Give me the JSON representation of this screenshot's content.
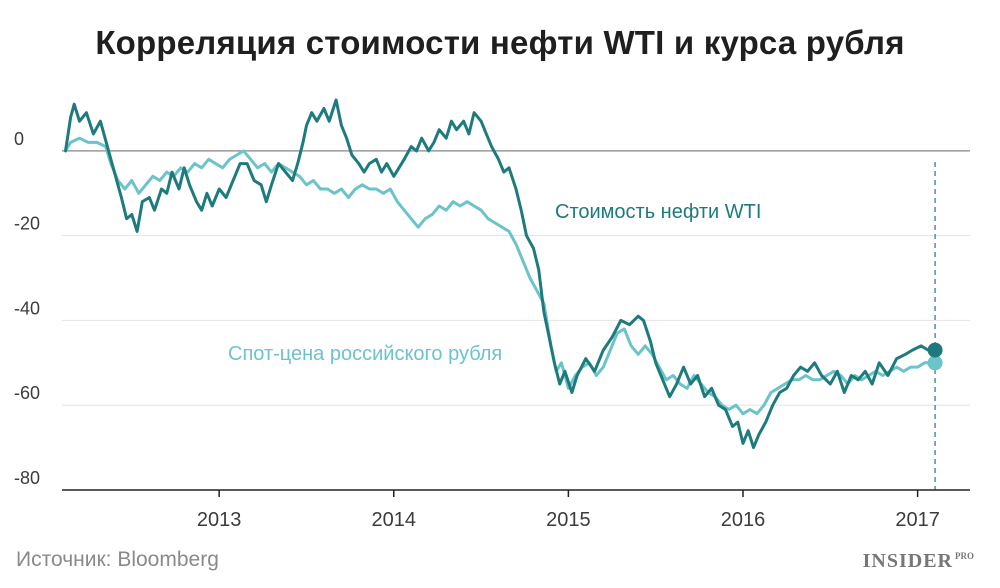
{
  "title": "Корреляция стоимости нефти WTI и курса рубля",
  "source": "Источник: Bloomberg",
  "brand": {
    "name": "INSIDER",
    "sup": "PRO"
  },
  "colors": {
    "oil": "#1e7b7d",
    "ruble": "#6cc3c9",
    "grid": "#e4e4e4",
    "zero": "#9a9a9a",
    "axis": "#222222"
  },
  "chart_data": {
    "type": "line",
    "title": "Корреляция стоимости нефти WTI и курса рубля",
    "xlabel": "",
    "ylabel": "",
    "ylim": [
      -80,
      12
    ],
    "xlim": [
      2012.1,
      2017.3
    ],
    "y_ticks": [
      "0",
      "-20",
      "-40",
      "-60",
      "-80"
    ],
    "y_tick_values": [
      0,
      -20,
      -40,
      -60,
      -80
    ],
    "x_ticks": [
      "2013",
      "2014",
      "2015",
      "2016",
      "2017"
    ],
    "x_tick_values": [
      2013,
      2014,
      2015,
      2016,
      2017
    ],
    "grid": true,
    "marker_x": 2017.1,
    "series": [
      {
        "name": "Стоимость нефти WTI",
        "points": [
          [
            2012.12,
            0
          ],
          [
            2012.15,
            8
          ],
          [
            2012.17,
            11
          ],
          [
            2012.2,
            7
          ],
          [
            2012.24,
            9
          ],
          [
            2012.28,
            4
          ],
          [
            2012.32,
            7
          ],
          [
            2012.36,
            1
          ],
          [
            2012.4,
            -5
          ],
          [
            2012.44,
            -11
          ],
          [
            2012.47,
            -16
          ],
          [
            2012.5,
            -15
          ],
          [
            2012.53,
            -19
          ],
          [
            2012.56,
            -12
          ],
          [
            2012.6,
            -11
          ],
          [
            2012.63,
            -14
          ],
          [
            2012.67,
            -9
          ],
          [
            2012.7,
            -10
          ],
          [
            2012.73,
            -5
          ],
          [
            2012.77,
            -9
          ],
          [
            2012.8,
            -4
          ],
          [
            2012.83,
            -8
          ],
          [
            2012.87,
            -12
          ],
          [
            2012.9,
            -14
          ],
          [
            2012.93,
            -10
          ],
          [
            2012.96,
            -13
          ],
          [
            2013.0,
            -9
          ],
          [
            2013.04,
            -11
          ],
          [
            2013.08,
            -7
          ],
          [
            2013.12,
            -3
          ],
          [
            2013.16,
            -3
          ],
          [
            2013.2,
            -7
          ],
          [
            2013.24,
            -8
          ],
          [
            2013.27,
            -12
          ],
          [
            2013.3,
            -8
          ],
          [
            2013.34,
            -3
          ],
          [
            2013.38,
            -5
          ],
          [
            2013.42,
            -7
          ],
          [
            2013.45,
            -3
          ],
          [
            2013.48,
            2
          ],
          [
            2013.5,
            6
          ],
          [
            2013.53,
            9
          ],
          [
            2013.56,
            7
          ],
          [
            2013.6,
            10
          ],
          [
            2013.63,
            7
          ],
          [
            2013.67,
            12
          ],
          [
            2013.7,
            6
          ],
          [
            2013.73,
            3
          ],
          [
            2013.76,
            -1
          ],
          [
            2013.8,
            -3
          ],
          [
            2013.83,
            -5
          ],
          [
            2013.86,
            -3
          ],
          [
            2013.9,
            -2
          ],
          [
            2013.93,
            -5
          ],
          [
            2013.96,
            -3
          ],
          [
            2014.0,
            -6
          ],
          [
            2014.03,
            -4
          ],
          [
            2014.06,
            -2
          ],
          [
            2014.1,
            1
          ],
          [
            2014.13,
            0
          ],
          [
            2014.16,
            3
          ],
          [
            2014.2,
            0
          ],
          [
            2014.23,
            2
          ],
          [
            2014.26,
            5
          ],
          [
            2014.3,
            3
          ],
          [
            2014.33,
            7
          ],
          [
            2014.36,
            5
          ],
          [
            2014.4,
            7
          ],
          [
            2014.43,
            4
          ],
          [
            2014.46,
            9
          ],
          [
            2014.5,
            7
          ],
          [
            2014.53,
            4
          ],
          [
            2014.56,
            1
          ],
          [
            2014.6,
            -2
          ],
          [
            2014.63,
            -5
          ],
          [
            2014.66,
            -4
          ],
          [
            2014.7,
            -9
          ],
          [
            2014.73,
            -14
          ],
          [
            2014.76,
            -20
          ],
          [
            2014.8,
            -23
          ],
          [
            2014.83,
            -28
          ],
          [
            2014.86,
            -38
          ],
          [
            2014.89,
            -44
          ],
          [
            2014.92,
            -50
          ],
          [
            2014.95,
            -55
          ],
          [
            2014.98,
            -52
          ],
          [
            2015.02,
            -57
          ],
          [
            2015.05,
            -53
          ],
          [
            2015.1,
            -49
          ],
          [
            2015.15,
            -52
          ],
          [
            2015.2,
            -47
          ],
          [
            2015.25,
            -44
          ],
          [
            2015.3,
            -40
          ],
          [
            2015.35,
            -41
          ],
          [
            2015.4,
            -39
          ],
          [
            2015.43,
            -40
          ],
          [
            2015.47,
            -45
          ],
          [
            2015.5,
            -50
          ],
          [
            2015.54,
            -54
          ],
          [
            2015.58,
            -58
          ],
          [
            2015.62,
            -55
          ],
          [
            2015.66,
            -51
          ],
          [
            2015.7,
            -55
          ],
          [
            2015.74,
            -53
          ],
          [
            2015.78,
            -58
          ],
          [
            2015.82,
            -56
          ],
          [
            2015.86,
            -60
          ],
          [
            2015.9,
            -61
          ],
          [
            2015.94,
            -65
          ],
          [
            2015.97,
            -64
          ],
          [
            2016.0,
            -69
          ],
          [
            2016.03,
            -66
          ],
          [
            2016.06,
            -70
          ],
          [
            2016.09,
            -67
          ],
          [
            2016.13,
            -64
          ],
          [
            2016.17,
            -60
          ],
          [
            2016.21,
            -57
          ],
          [
            2016.25,
            -56
          ],
          [
            2016.29,
            -53
          ],
          [
            2016.33,
            -51
          ],
          [
            2016.37,
            -52
          ],
          [
            2016.41,
            -50
          ],
          [
            2016.45,
            -53
          ],
          [
            2016.5,
            -55
          ],
          [
            2016.54,
            -52
          ],
          [
            2016.58,
            -57
          ],
          [
            2016.62,
            -53
          ],
          [
            2016.66,
            -54
          ],
          [
            2016.7,
            -52
          ],
          [
            2016.74,
            -55
          ],
          [
            2016.78,
            -50
          ],
          [
            2016.83,
            -53
          ],
          [
            2016.88,
            -49
          ],
          [
            2016.93,
            -48
          ],
          [
            2016.97,
            -47
          ],
          [
            2017.02,
            -46
          ],
          [
            2017.06,
            -47
          ],
          [
            2017.1,
            -47
          ]
        ]
      },
      {
        "name": "Спот-цена российского рубля",
        "points": [
          [
            2012.12,
            0
          ],
          [
            2012.15,
            2
          ],
          [
            2012.2,
            3
          ],
          [
            2012.25,
            2
          ],
          [
            2012.3,
            2
          ],
          [
            2012.35,
            1
          ],
          [
            2012.38,
            -3
          ],
          [
            2012.42,
            -7
          ],
          [
            2012.46,
            -9
          ],
          [
            2012.5,
            -7
          ],
          [
            2012.54,
            -10
          ],
          [
            2012.58,
            -8
          ],
          [
            2012.62,
            -6
          ],
          [
            2012.66,
            -7
          ],
          [
            2012.7,
            -5
          ],
          [
            2012.74,
            -6
          ],
          [
            2012.78,
            -4
          ],
          [
            2012.82,
            -5
          ],
          [
            2012.86,
            -3
          ],
          [
            2012.9,
            -4
          ],
          [
            2012.94,
            -2
          ],
          [
            2012.98,
            -3
          ],
          [
            2013.02,
            -4
          ],
          [
            2013.06,
            -2
          ],
          [
            2013.1,
            -1
          ],
          [
            2013.14,
            0
          ],
          [
            2013.18,
            -2
          ],
          [
            2013.22,
            -4
          ],
          [
            2013.26,
            -3
          ],
          [
            2013.3,
            -5
          ],
          [
            2013.34,
            -3
          ],
          [
            2013.38,
            -4
          ],
          [
            2013.42,
            -5
          ],
          [
            2013.46,
            -6
          ],
          [
            2013.5,
            -8
          ],
          [
            2013.54,
            -7
          ],
          [
            2013.58,
            -9
          ],
          [
            2013.62,
            -9
          ],
          [
            2013.66,
            -10
          ],
          [
            2013.7,
            -9
          ],
          [
            2013.74,
            -11
          ],
          [
            2013.78,
            -9
          ],
          [
            2013.82,
            -8
          ],
          [
            2013.86,
            -9
          ],
          [
            2013.9,
            -9
          ],
          [
            2013.94,
            -10
          ],
          [
            2013.98,
            -9
          ],
          [
            2014.02,
            -12
          ],
          [
            2014.06,
            -14
          ],
          [
            2014.1,
            -16
          ],
          [
            2014.14,
            -18
          ],
          [
            2014.18,
            -16
          ],
          [
            2014.22,
            -15
          ],
          [
            2014.26,
            -13
          ],
          [
            2014.3,
            -14
          ],
          [
            2014.34,
            -12
          ],
          [
            2014.38,
            -13
          ],
          [
            2014.42,
            -12
          ],
          [
            2014.46,
            -13
          ],
          [
            2014.5,
            -14
          ],
          [
            2014.54,
            -16
          ],
          [
            2014.58,
            -17
          ],
          [
            2014.62,
            -18
          ],
          [
            2014.66,
            -19
          ],
          [
            2014.7,
            -22
          ],
          [
            2014.74,
            -26
          ],
          [
            2014.78,
            -30
          ],
          [
            2014.82,
            -33
          ],
          [
            2014.86,
            -36
          ],
          [
            2014.9,
            -46
          ],
          [
            2014.93,
            -52
          ],
          [
            2014.96,
            -50
          ],
          [
            2015.0,
            -56
          ],
          [
            2015.04,
            -53
          ],
          [
            2015.08,
            -51
          ],
          [
            2015.12,
            -50
          ],
          [
            2015.16,
            -53
          ],
          [
            2015.2,
            -51
          ],
          [
            2015.24,
            -47
          ],
          [
            2015.28,
            -43
          ],
          [
            2015.32,
            -42
          ],
          [
            2015.36,
            -46
          ],
          [
            2015.4,
            -48
          ],
          [
            2015.44,
            -46
          ],
          [
            2015.48,
            -48
          ],
          [
            2015.52,
            -51
          ],
          [
            2015.56,
            -54
          ],
          [
            2015.6,
            -53
          ],
          [
            2015.64,
            -55
          ],
          [
            2015.68,
            -56
          ],
          [
            2015.72,
            -53
          ],
          [
            2015.76,
            -55
          ],
          [
            2015.8,
            -57
          ],
          [
            2015.84,
            -58
          ],
          [
            2015.88,
            -60
          ],
          [
            2015.92,
            -61
          ],
          [
            2015.96,
            -60
          ],
          [
            2016.0,
            -62
          ],
          [
            2016.04,
            -61
          ],
          [
            2016.08,
            -62
          ],
          [
            2016.12,
            -60
          ],
          [
            2016.16,
            -57
          ],
          [
            2016.2,
            -56
          ],
          [
            2016.24,
            -55
          ],
          [
            2016.28,
            -54
          ],
          [
            2016.32,
            -54
          ],
          [
            2016.36,
            -53
          ],
          [
            2016.4,
            -54
          ],
          [
            2016.44,
            -54
          ],
          [
            2016.48,
            -53
          ],
          [
            2016.52,
            -52
          ],
          [
            2016.56,
            -53
          ],
          [
            2016.6,
            -55
          ],
          [
            2016.64,
            -53
          ],
          [
            2016.68,
            -54
          ],
          [
            2016.72,
            -53
          ],
          [
            2016.76,
            -52
          ],
          [
            2016.8,
            -53
          ],
          [
            2016.84,
            -52
          ],
          [
            2016.88,
            -51
          ],
          [
            2016.92,
            -52
          ],
          [
            2016.96,
            -51
          ],
          [
            2017.0,
            -51
          ],
          [
            2017.04,
            -50
          ],
          [
            2017.08,
            -50
          ],
          [
            2017.1,
            -50
          ]
        ]
      }
    ]
  }
}
